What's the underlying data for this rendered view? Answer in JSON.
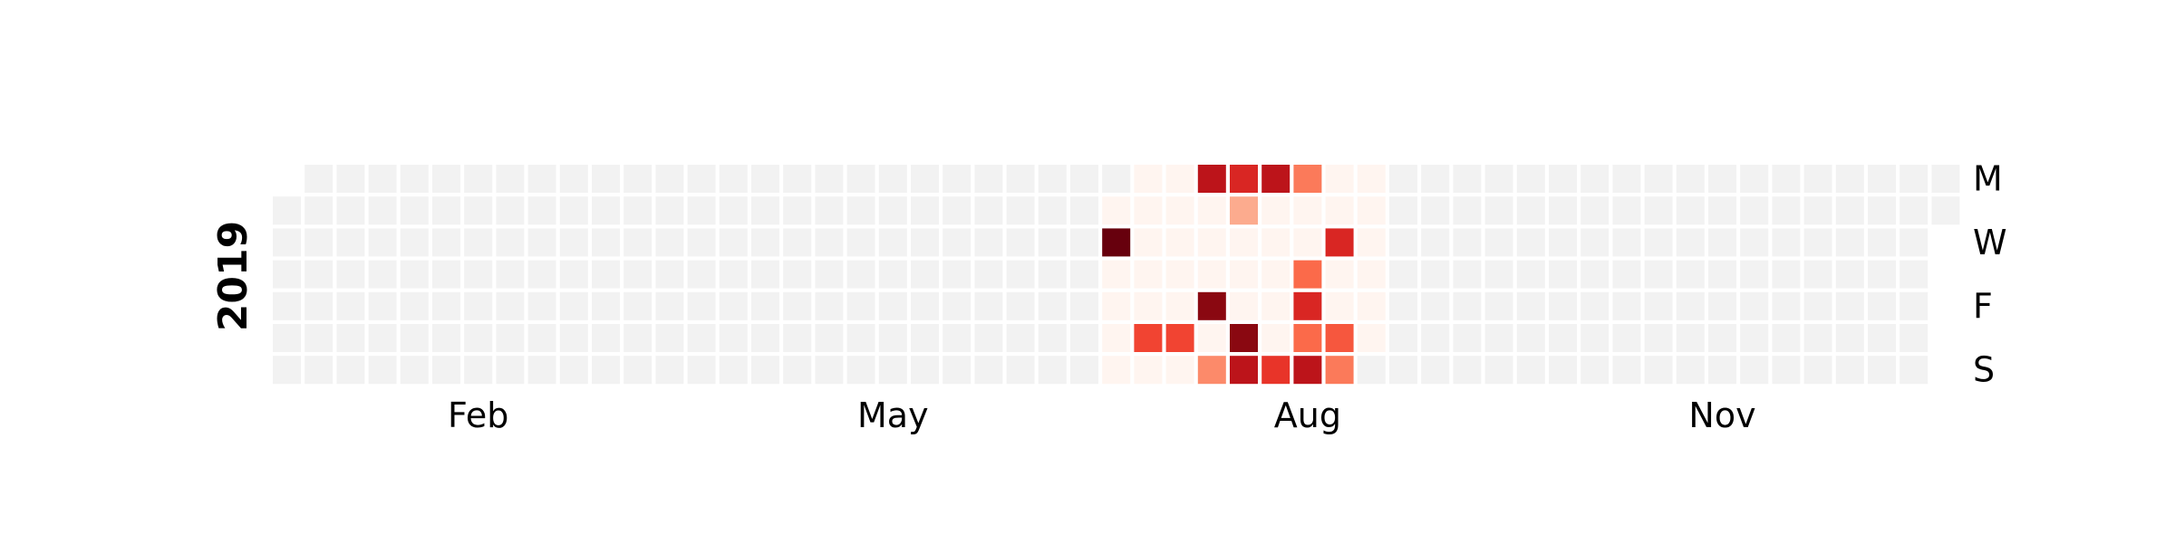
{
  "chart_data": {
    "type": "heatmap",
    "year": "2019",
    "start_date": "2019-01-01",
    "end_date": "2019-12-31",
    "weekday_labels": [
      "M",
      "",
      "W",
      "",
      "F",
      "",
      "S"
    ],
    "month_labels": [
      {
        "label": "Feb",
        "date": "2019-02-01"
      },
      {
        "label": "May",
        "date": "2019-05-01"
      },
      {
        "label": "Aug",
        "date": "2019-08-01"
      },
      {
        "label": "Nov",
        "date": "2019-11-01"
      }
    ],
    "colormap": "Reds",
    "empty_color": "#f2f2f2",
    "zero_color": "#fff5f0",
    "data_range": [
      "2019-07-02",
      "2019-08-31"
    ],
    "value_range": [
      0,
      10
    ],
    "nonzero_values": [
      {
        "date": "2019-07-03",
        "value": 10
      },
      {
        "date": "2019-07-13",
        "value": 6
      },
      {
        "date": "2019-07-20",
        "value": 6
      },
      {
        "date": "2019-07-22",
        "value": 8
      },
      {
        "date": "2019-07-26",
        "value": 9.3
      },
      {
        "date": "2019-07-28",
        "value": 4
      },
      {
        "date": "2019-07-29",
        "value": 7
      },
      {
        "date": "2019-07-30",
        "value": 3
      },
      {
        "date": "2019-08-03",
        "value": 9.3
      },
      {
        "date": "2019-08-04",
        "value": 8
      },
      {
        "date": "2019-08-05",
        "value": 8
      },
      {
        "date": "2019-08-11",
        "value": 6.5
      },
      {
        "date": "2019-08-12",
        "value": 4.5
      },
      {
        "date": "2019-08-15",
        "value": 5
      },
      {
        "date": "2019-08-16",
        "value": 7
      },
      {
        "date": "2019-08-17",
        "value": 5
      },
      {
        "date": "2019-08-18",
        "value": 8
      },
      {
        "date": "2019-08-21",
        "value": 7
      },
      {
        "date": "2019-08-24",
        "value": 5.5
      },
      {
        "date": "2019-08-25",
        "value": 4.5
      }
    ]
  }
}
